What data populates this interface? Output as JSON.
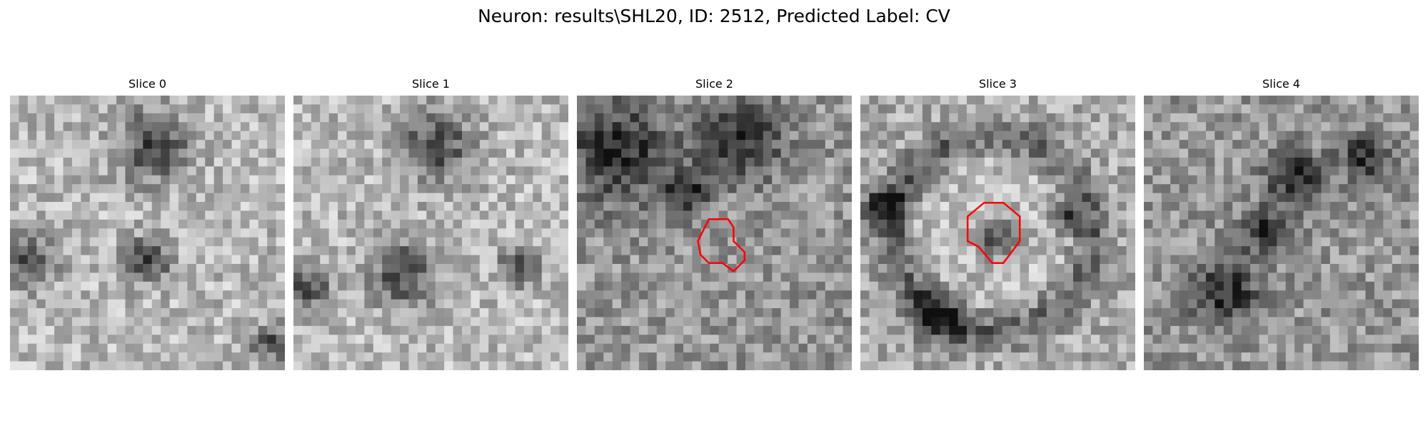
{
  "figure": {
    "suptitle": "Neuron: results\\SHL20, ID: 2512, Predicted Label: CV",
    "contour_color": "#ff0000"
  },
  "panels": [
    {
      "title": "Slice 0",
      "tone": "light",
      "dark_blobs": [
        [
          0.52,
          0.18,
          0.16
        ],
        [
          0.06,
          0.6,
          0.12
        ],
        [
          0.5,
          0.6,
          0.1
        ],
        [
          0.95,
          0.9,
          0.08
        ]
      ],
      "contour": null
    },
    {
      "title": "Slice 1",
      "tone": "light",
      "dark_blobs": [
        [
          0.52,
          0.18,
          0.16
        ],
        [
          0.4,
          0.65,
          0.14
        ],
        [
          0.05,
          0.7,
          0.1
        ],
        [
          0.82,
          0.62,
          0.08
        ]
      ],
      "contour": null
    },
    {
      "title": "Slice 2",
      "tone": "mid",
      "dark_blobs": [
        [
          0.15,
          0.2,
          0.22
        ],
        [
          0.6,
          0.15,
          0.18
        ],
        [
          0.4,
          0.35,
          0.1
        ]
      ],
      "contour": [
        [
          0.48,
          0.45
        ],
        [
          0.55,
          0.45
        ],
        [
          0.57,
          0.48
        ],
        [
          0.57,
          0.53
        ],
        [
          0.61,
          0.57
        ],
        [
          0.61,
          0.6
        ],
        [
          0.57,
          0.64
        ],
        [
          0.53,
          0.61
        ],
        [
          0.48,
          0.61
        ],
        [
          0.45,
          0.58
        ],
        [
          0.44,
          0.53
        ]
      ]
    },
    {
      "title": "Slice 3",
      "tone": "ring",
      "dark_blobs": [
        [
          0.5,
          0.52,
          0.09
        ],
        [
          0.08,
          0.4,
          0.1
        ],
        [
          0.28,
          0.8,
          0.12
        ],
        [
          0.75,
          0.45,
          0.07
        ]
      ],
      "contour": [
        [
          0.45,
          0.39
        ],
        [
          0.52,
          0.39
        ],
        [
          0.58,
          0.44
        ],
        [
          0.58,
          0.53
        ],
        [
          0.52,
          0.61
        ],
        [
          0.48,
          0.61
        ],
        [
          0.43,
          0.55
        ],
        [
          0.39,
          0.53
        ],
        [
          0.39,
          0.44
        ]
      ]
    },
    {
      "title": "Slice 4",
      "tone": "mid",
      "dark_blobs": [
        [
          0.3,
          0.72,
          0.14
        ],
        [
          0.55,
          0.3,
          0.12
        ],
        [
          0.8,
          0.22,
          0.1
        ],
        [
          0.45,
          0.5,
          0.1
        ]
      ],
      "contour": null
    }
  ]
}
